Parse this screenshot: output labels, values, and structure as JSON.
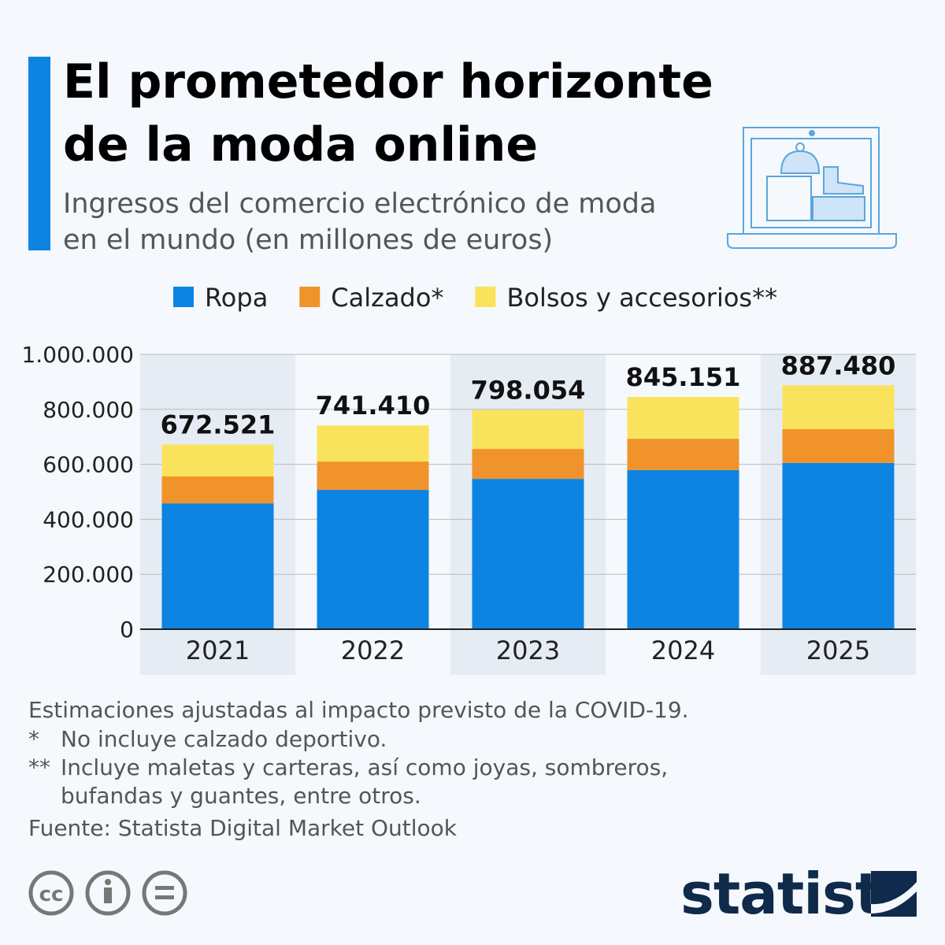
{
  "chart_data": {
    "type": "stacked_bar",
    "title": [
      "El prometedor horizonte",
      "de la moda online"
    ],
    "subtitle": [
      "Ingresos del comercio electrónico de moda",
      "en el mundo (en millones de euros)"
    ],
    "categories": [
      "2021",
      "2022",
      "2023",
      "2024",
      "2025"
    ],
    "series": [
      {
        "name": "Ropa",
        "color": "#0d84e2",
        "values": [
          458000,
          507000,
          547000,
          579000,
          605000
        ]
      },
      {
        "name": "Calzado*",
        "color": "#f0932b",
        "values": [
          98000,
          103000,
          109000,
          114000,
          123000
        ]
      },
      {
        "name": "Bolsos y accesorios**",
        "color": "#fae35c",
        "values": [
          116521,
          131410,
          142054,
          152151,
          159480
        ]
      }
    ],
    "totals": [
      672521,
      741410,
      798054,
      845151,
      887480
    ],
    "value_labels": [
      "672.521",
      "741.410",
      "798.054",
      "845.151",
      "887.480"
    ],
    "ylim": [
      0,
      1000000
    ],
    "yticks": [
      0,
      {
        "value": 200000,
        "label": "200.000"
      },
      {
        "value": 400000,
        "label": "400.000"
      },
      {
        "value": 600000,
        "label": "600.000"
      },
      {
        "value": 800000,
        "label": "800.000"
      },
      {
        "value": 1000000,
        "label": "1.000.000"
      }
    ],
    "grid": true,
    "legend": "top",
    "notes": [
      "Estimaciones ajustadas al impacto previsto de la COVID-19."
    ],
    "footnotes": [
      {
        "marker": "*",
        "lines": [
          "No incluye calzado deportivo."
        ]
      },
      {
        "marker": "**",
        "lines": [
          "Incluye maletas y carteras, así como joyas, sombreros,",
          "bufandas y guantes, entre otros."
        ]
      }
    ],
    "source": "Fuente: Statista Digital Market Outlook",
    "brand": "statista"
  }
}
